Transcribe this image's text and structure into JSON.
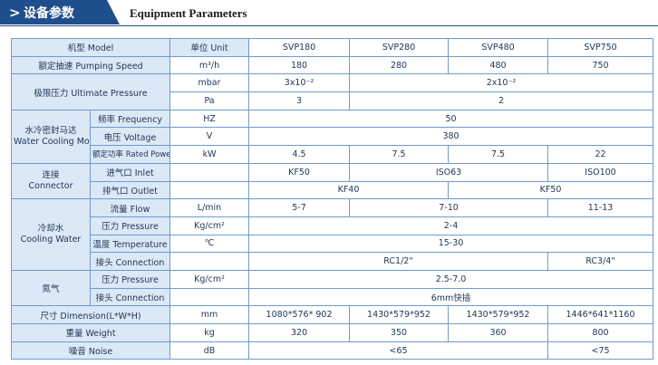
{
  "header": {
    "title": "设备参数",
    "subtitle": "Equipment Parameters"
  },
  "table": {
    "rows": [
      [
        "机型 Model",
        "单位 Unit",
        "SVP180",
        "SVP280",
        "SVP480",
        "SVP750"
      ],
      [
        "额定抽速 Pumping Speed",
        "m³/h",
        "180",
        "280",
        "480",
        "750"
      ],
      [
        "极限压力 Ultimate Pressure",
        "mbar",
        "3x10⁻²",
        "2x10⁻²"
      ],
      [
        "Pa",
        "3",
        "2"
      ],
      [
        "水冷密封马达",
        "Water Cooling Motor",
        "频率 Frequency",
        "HZ",
        "50"
      ],
      [
        "电压 Voltage",
        "V",
        "380"
      ],
      [
        "额定功率 Rated Power",
        "kW",
        "4.5",
        "7.5",
        "7.5",
        "22"
      ],
      [
        "连接",
        "Connector",
        "进气口 Inlet",
        "KF50",
        "ISO63",
        "ISO100"
      ],
      [
        "排气口 Outlet",
        "KF40",
        "KF50"
      ],
      [
        "冷却水",
        "Cooling Water",
        "流量 Flow",
        "L/min",
        "5-7",
        "7-10",
        "11-13"
      ],
      [
        "压力 Pressure",
        "Kg/cm²",
        "2-4"
      ],
      [
        "温度 Temperature",
        "℃",
        "15-30"
      ],
      [
        "接头 Connection",
        "RC1/2\"",
        "RC3/4\""
      ],
      [
        "氮气",
        "压力 Pressure",
        "Kg/cm²",
        "2.5-7.0"
      ],
      [
        "接头 Connection",
        "6mm快插"
      ],
      [
        "尺寸 Dimension(L*W*H)",
        "mm",
        "1080*576* 902",
        "1430*579*952",
        "1430*579*952",
        "1446*641*1160"
      ],
      [
        "重量 Weight",
        "kg",
        "320",
        "350",
        "360",
        "800"
      ],
      [
        "噪音 Noise",
        "dB",
        "<65",
        "<75"
      ]
    ]
  }
}
